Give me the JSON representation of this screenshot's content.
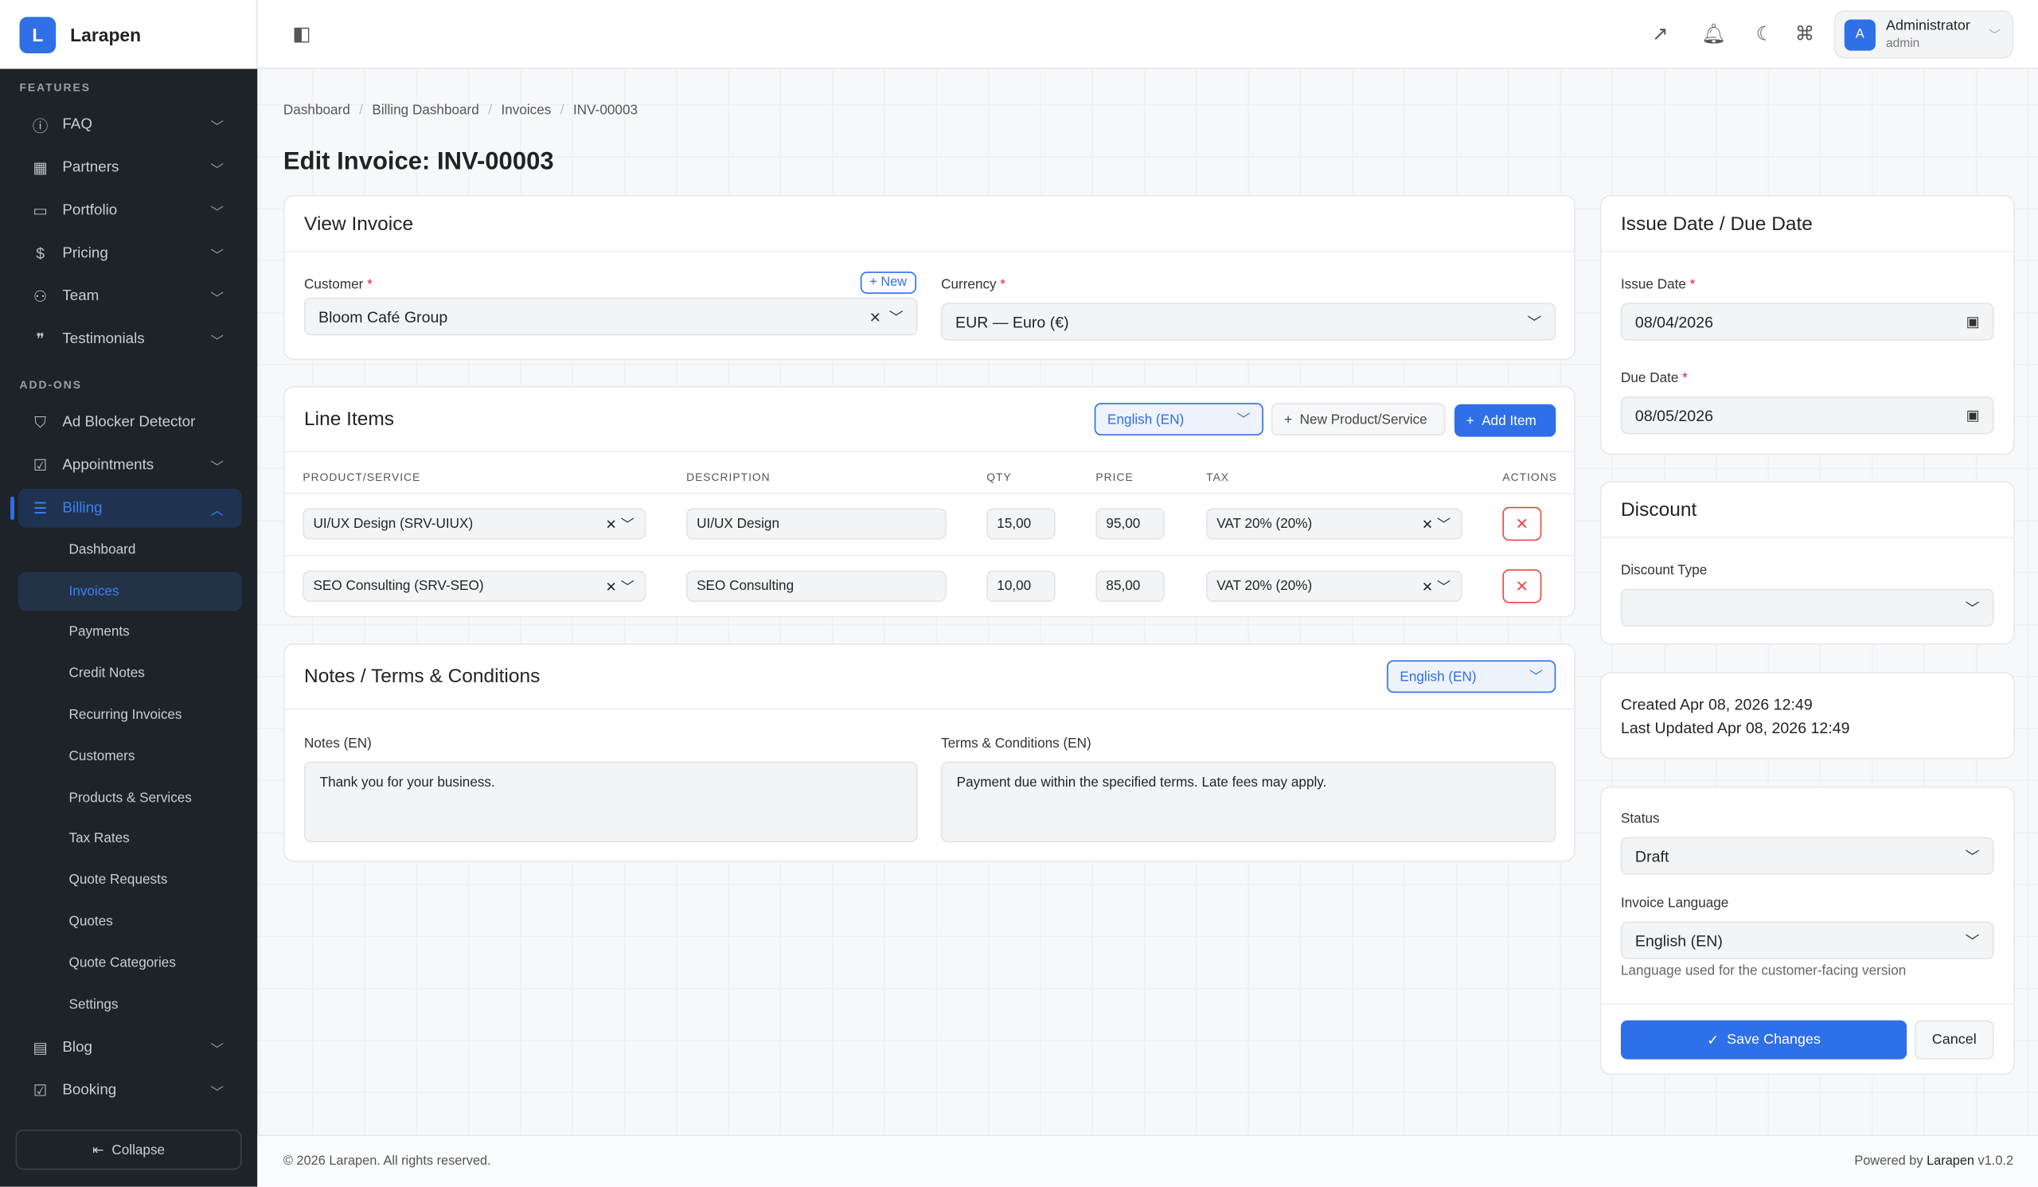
{
  "brand": {
    "logo_letter": "L",
    "name": "Larapen"
  },
  "sidebar": {
    "features_label": "FEATURES",
    "features": [
      {
        "label": "FAQ",
        "icon": "question-icon"
      },
      {
        "label": "Partners",
        "icon": "building-icon"
      },
      {
        "label": "Portfolio",
        "icon": "briefcase-icon"
      },
      {
        "label": "Pricing",
        "icon": "dollar-icon"
      },
      {
        "label": "Team",
        "icon": "users-icon"
      },
      {
        "label": "Testimonials",
        "icon": "quote-bubble-icon"
      }
    ],
    "addons_label": "ADD-ONS",
    "addons": [
      {
        "label": "Ad Blocker Detector",
        "icon": "shield-icon"
      },
      {
        "label": "Appointments",
        "icon": "calendar-check-icon"
      },
      {
        "label": "Billing",
        "icon": "receipt-icon"
      }
    ],
    "billing_sub": [
      "Dashboard",
      "Invoices",
      "Payments",
      "Credit Notes",
      "Recurring Invoices",
      "Customers",
      "Products & Services",
      "Tax Rates",
      "Quote Requests",
      "Quotes",
      "Quote Categories",
      "Settings"
    ],
    "after": [
      {
        "label": "Blog",
        "icon": "document-icon"
      },
      {
        "label": "Booking",
        "icon": "calendar-check-icon"
      }
    ],
    "collapse": "Collapse"
  },
  "user": {
    "initial": "A",
    "name": "Administrator",
    "role": "admin"
  },
  "breadcrumb": [
    "Dashboard",
    "Billing Dashboard",
    "Invoices",
    "INV-00003"
  ],
  "page_title": "Edit Invoice: INV-00003",
  "view_invoice": {
    "title": "View Invoice",
    "customer_label": "Customer",
    "new_label": "New",
    "customer": "Bloom Café Group",
    "currency_label": "Currency",
    "currency": "EUR — Euro (€)"
  },
  "line_items": {
    "title": "Line Items",
    "language": "English (EN)",
    "new_product": "New Product/Service",
    "add_item": "Add Item",
    "headers": [
      "PRODUCT/SERVICE",
      "DESCRIPTION",
      "QTY",
      "PRICE",
      "TAX",
      "ACTIONS"
    ],
    "rows": [
      {
        "product": "UI/UX Design (SRV-UIUX)",
        "description": "UI/UX Design",
        "qty": "15,00",
        "price": "95,00",
        "tax": "VAT 20% (20%)"
      },
      {
        "product": "SEO Consulting (SRV-SEO)",
        "description": "SEO Consulting",
        "qty": "10,00",
        "price": "85,00",
        "tax": "VAT 20% (20%)"
      }
    ]
  },
  "notes": {
    "title": "Notes / Terms & Conditions",
    "language": "English (EN)",
    "notes_label": "Notes (EN)",
    "notes": "Thank you for your business.",
    "terms_label": "Terms & Conditions (EN)",
    "terms": "Payment due within the specified terms. Late fees may apply."
  },
  "dates": {
    "title": "Issue Date / Due Date",
    "issue_label": "Issue Date",
    "issue": "08/04/2026",
    "due_label": "Due Date",
    "due": "08/05/2026"
  },
  "discount": {
    "title": "Discount",
    "type_label": "Discount Type",
    "type": ""
  },
  "meta": {
    "created": "Created Apr 08, 2026 12:49",
    "updated": "Last Updated Apr 08, 2026 12:49"
  },
  "status": {
    "status_label": "Status",
    "status": "Draft",
    "lang_label": "Invoice Language",
    "lang": "English (EN)",
    "lang_help": "Language used for the customer-facing version",
    "save": "Save Changes",
    "cancel": "Cancel"
  },
  "footer": {
    "copyright": "© 2026 Larapen. All rights reserved.",
    "powered": "Powered by",
    "powered_brand": "Larapen",
    "version": "v1.0.2"
  }
}
